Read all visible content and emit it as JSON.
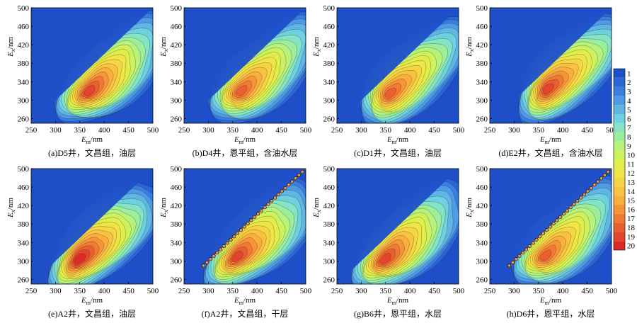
{
  "chart_data": {
    "type": "heatmap",
    "colorbar": {
      "levels": [
        1,
        2,
        3,
        4,
        5,
        6,
        7,
        8,
        9,
        10,
        11,
        12,
        13,
        14,
        15,
        16,
        17,
        18,
        19,
        20
      ],
      "colors": [
        "#1f4fc8",
        "#2a66d6",
        "#3a7fe0",
        "#4f9ae6",
        "#5fb6e4",
        "#6fd0df",
        "#85e3c6",
        "#9cee9c",
        "#b6f27c",
        "#cdf25e",
        "#e0ee4c",
        "#eee546",
        "#f6d545",
        "#f9c342",
        "#f9ae3d",
        "#f59538",
        "#f07a33",
        "#ea5f2f",
        "#e4442b",
        "#dd2a27"
      ]
    },
    "panels": [
      {
        "caption": "(a)D5井，文昌组，油层",
        "xlabel_main": "E",
        "xlabel_sub": "m",
        "xlabel_unit": "/nm",
        "ylabel_main": "E",
        "ylabel_sub": "x",
        "ylabel_unit": "/nm",
        "xlim": [
          250,
          500
        ],
        "ylim": [
          250,
          500
        ],
        "xticks": [
          250,
          300,
          350,
          400,
          450,
          500
        ],
        "yticks": [
          260,
          300,
          340,
          380,
          420,
          460,
          500
        ],
        "peak": {
          "em": 370,
          "ex": 320,
          "level": 19
        },
        "scatter_line": false
      },
      {
        "caption": "(b)D4井，恩平组，含油水层",
        "xlabel_main": "E",
        "xlabel_sub": "m",
        "xlabel_unit": "/nm",
        "ylabel_main": "E",
        "ylabel_sub": "x",
        "ylabel_unit": "/nm",
        "xlim": [
          250,
          500
        ],
        "ylim": [
          250,
          500
        ],
        "xticks": [
          250,
          300,
          350,
          400,
          450,
          500
        ],
        "yticks": [
          260,
          300,
          340,
          380,
          420,
          460,
          500
        ],
        "peak": {
          "em": 368,
          "ex": 320,
          "level": 18
        },
        "scatter_line": false
      },
      {
        "caption": "(c)D1井，文昌组，油层",
        "xlabel_main": "E",
        "xlabel_sub": "m",
        "xlabel_unit": "/nm",
        "ylabel_main": "E",
        "ylabel_sub": "x",
        "ylabel_unit": "/nm",
        "xlim": [
          250,
          500
        ],
        "ylim": [
          250,
          500
        ],
        "xticks": [
          250,
          300,
          350,
          400,
          450,
          500
        ],
        "yticks": [
          260,
          300,
          340,
          380,
          420,
          460,
          500
        ],
        "peak": {
          "em": 360,
          "ex": 315,
          "level": 18
        },
        "scatter_line": false
      },
      {
        "caption": "(d)E2井，文昌组，含油水层",
        "xlabel_main": "E",
        "xlabel_sub": "m",
        "xlabel_unit": "/nm",
        "ylabel_main": "E",
        "ylabel_sub": "x",
        "ylabel_unit": "/nm",
        "xlim": [
          250,
          500
        ],
        "ylim": [
          250,
          500
        ],
        "xticks": [
          250,
          300,
          350,
          400,
          450,
          500
        ],
        "yticks": [
          260,
          300,
          340,
          380,
          420,
          460,
          500
        ],
        "peak": {
          "em": 370,
          "ex": 325,
          "level": 19
        },
        "scatter_line": false
      },
      {
        "caption": "(e)A2井，文昌组，油层",
        "xlabel_main": "E",
        "xlabel_sub": "m",
        "xlabel_unit": "/nm",
        "ylabel_main": "E",
        "ylabel_sub": "x",
        "ylabel_unit": "/nm",
        "xlim": [
          250,
          500
        ],
        "ylim": [
          250,
          500
        ],
        "xticks": [
          250,
          300,
          350,
          400,
          450,
          500
        ],
        "yticks": [
          260,
          300,
          340,
          380,
          420,
          460,
          500
        ],
        "peak": {
          "em": 350,
          "ex": 305,
          "level": 20
        },
        "scatter_line": false
      },
      {
        "caption": "(f)A2井，文昌组，干层",
        "xlabel_main": "E",
        "xlabel_sub": "m",
        "xlabel_unit": "/nm",
        "ylabel_main": "E",
        "ylabel_sub": "x",
        "ylabel_unit": "/nm",
        "xlim": [
          250,
          500
        ],
        "ylim": [
          250,
          500
        ],
        "xticks": [
          250,
          300,
          350,
          400,
          450,
          500
        ],
        "yticks": [
          260,
          300,
          340,
          380,
          420,
          460,
          500
        ],
        "peak": {
          "em": 360,
          "ex": 310,
          "level": 19
        },
        "scatter_line": true
      },
      {
        "caption": "(g)B6井，恩平组，水层",
        "xlabel_main": "E",
        "xlabel_sub": "m",
        "xlabel_unit": "/nm",
        "ylabel_main": "E",
        "ylabel_sub": "x",
        "ylabel_unit": "/nm",
        "xlim": [
          250,
          500
        ],
        "ylim": [
          250,
          500
        ],
        "xticks": [
          250,
          300,
          350,
          400,
          450,
          500
        ],
        "yticks": [
          260,
          300,
          340,
          380,
          420,
          460,
          500
        ],
        "peak": {
          "em": 350,
          "ex": 305,
          "level": 19
        },
        "scatter_line": false
      },
      {
        "caption": "(h)D6井，恩平组，水层",
        "xlabel_main": "E",
        "xlabel_sub": "m",
        "xlabel_unit": "/nm",
        "ylabel_main": "E",
        "ylabel_sub": "x",
        "ylabel_unit": "/nm",
        "xlim": [
          250,
          500
        ],
        "ylim": [
          250,
          500
        ],
        "xticks": [
          250,
          300,
          350,
          400,
          450,
          500
        ],
        "yticks": [
          260,
          300,
          340,
          380,
          420,
          460,
          500
        ],
        "peak": {
          "em": 365,
          "ex": 312,
          "level": 18
        },
        "scatter_line": true
      }
    ]
  }
}
